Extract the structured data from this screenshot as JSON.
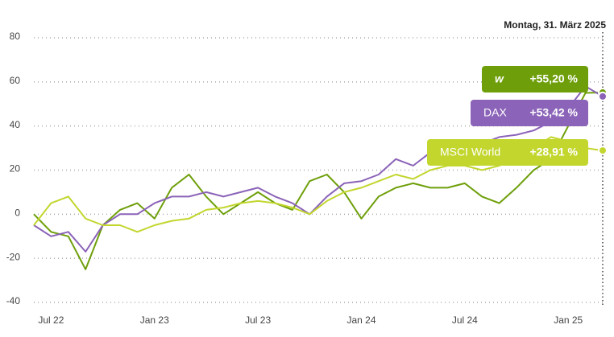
{
  "chart_data": {
    "type": "line",
    "date_label": "Montag, 31. März 2025",
    "x": [
      "2022-06",
      "2022-07",
      "2022-08",
      "2022-09",
      "2022-10",
      "2022-11",
      "2022-12",
      "2023-01",
      "2023-02",
      "2023-03",
      "2023-04",
      "2023-05",
      "2023-06",
      "2023-07",
      "2023-08",
      "2023-09",
      "2023-10",
      "2023-11",
      "2023-12",
      "2024-01",
      "2024-02",
      "2024-03",
      "2024-04",
      "2024-05",
      "2024-06",
      "2024-07",
      "2024-08",
      "2024-09",
      "2024-10",
      "2024-11",
      "2024-12",
      "2025-01",
      "2025-02",
      "2025-03"
    ],
    "xlim": [
      "2022-06",
      "2025-03"
    ],
    "xticks": [
      {
        "value": "2022-07",
        "label": "Jul 22"
      },
      {
        "value": "2023-01",
        "label": "Jan 23"
      },
      {
        "value": "2023-07",
        "label": "Jul 23"
      },
      {
        "value": "2024-01",
        "label": "Jan 24"
      },
      {
        "value": "2024-07",
        "label": "Jul 24"
      },
      {
        "value": "2025-01",
        "label": "Jan 25"
      }
    ],
    "ylim": [
      -40,
      80
    ],
    "yticks": [
      -40,
      -20,
      0,
      20,
      40,
      60,
      80
    ],
    "grid": true,
    "series": [
      {
        "name": "w",
        "color": "#6e9f0a",
        "end_value": 55.2,
        "end_label": "+55,20 %",
        "values": [
          0,
          -8,
          -10,
          -25,
          -5,
          2,
          5,
          -2,
          12,
          18,
          8,
          0,
          5,
          10,
          5,
          2,
          15,
          18,
          10,
          -2,
          8,
          12,
          14,
          12,
          12,
          14,
          8,
          5,
          12,
          20,
          25,
          40,
          55,
          55.2
        ]
      },
      {
        "name": "DAX",
        "color": "#8b63b8",
        "end_value": 53.42,
        "end_label": "+53,42 %",
        "values": [
          -5,
          -10,
          -8,
          -17,
          -5,
          0,
          0,
          5,
          8,
          8,
          10,
          8,
          10,
          12,
          8,
          5,
          0,
          8,
          14,
          15,
          18,
          25,
          22,
          28,
          28,
          30,
          32,
          35,
          36,
          38,
          42,
          48,
          58,
          53.42
        ]
      },
      {
        "name": "MSCI World",
        "color": "#c2d62e",
        "end_value": 28.91,
        "end_label": "+28,91 %",
        "values": [
          -5,
          5,
          8,
          -2,
          -5,
          -5,
          -8,
          -5,
          -3,
          -2,
          2,
          3,
          5,
          6,
          5,
          3,
          0,
          6,
          10,
          12,
          15,
          18,
          16,
          20,
          22,
          22,
          20,
          22,
          25,
          30,
          35,
          33,
          30,
          28.91
        ]
      }
    ]
  }
}
